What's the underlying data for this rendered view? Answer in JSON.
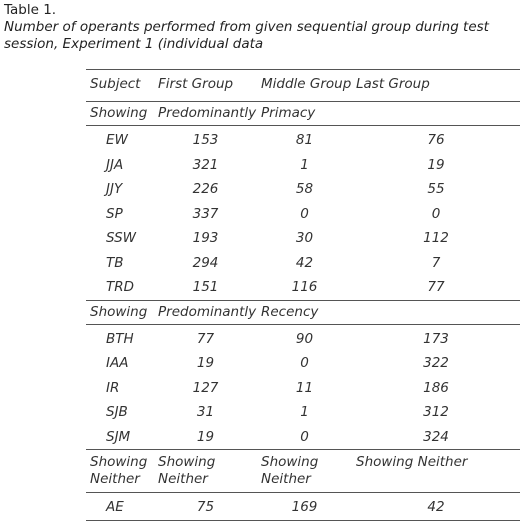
{
  "caption": {
    "table_label": "Table 1.",
    "description": "Number of operants performed from given sequential group during test session, Experiment 1 (individual data"
  },
  "table": {
    "headers": {
      "subject": "Subject",
      "first": "First Group",
      "middle": "Middle Group",
      "last": "Last Group"
    },
    "sections": [
      {
        "labels": [
          "Showing",
          "Predominantly",
          "Primacy",
          ""
        ],
        "rows": [
          {
            "subject": "EW",
            "first": "153",
            "middle": "81",
            "last": "76"
          },
          {
            "subject": "JJA",
            "first": "321",
            "middle": "1",
            "last": "19"
          },
          {
            "subject": "JJY",
            "first": "226",
            "middle": "58",
            "last": "55"
          },
          {
            "subject": "SP",
            "first": "337",
            "middle": "0",
            "last": "0"
          },
          {
            "subject": "SSW",
            "first": "193",
            "middle": "30",
            "last": "112"
          },
          {
            "subject": "TB",
            "first": "294",
            "middle": "42",
            "last": "7"
          },
          {
            "subject": "TRD",
            "first": "151",
            "middle": "116",
            "last": "77"
          }
        ]
      },
      {
        "labels": [
          "Showing",
          "Predominantly",
          "Recency",
          ""
        ],
        "rows": [
          {
            "subject": "BTH",
            "first": "77",
            "middle": "90",
            "last": "173"
          },
          {
            "subject": "IAA",
            "first": "19",
            "middle": "0",
            "last": "322"
          },
          {
            "subject": "IR",
            "first": "127",
            "middle": "11",
            "last": "186"
          },
          {
            "subject": "SJB",
            "first": "31",
            "middle": "1",
            "last": "312"
          },
          {
            "subject": "SJM",
            "first": "19",
            "middle": "0",
            "last": "324"
          }
        ]
      },
      {
        "labels": [
          "Showing Neither",
          "Showing Neither",
          "Showing Neither",
          "Showing Neither"
        ],
        "rows": [
          {
            "subject": "AE",
            "first": "75",
            "middle": "169",
            "last": "42"
          }
        ]
      }
    ]
  }
}
